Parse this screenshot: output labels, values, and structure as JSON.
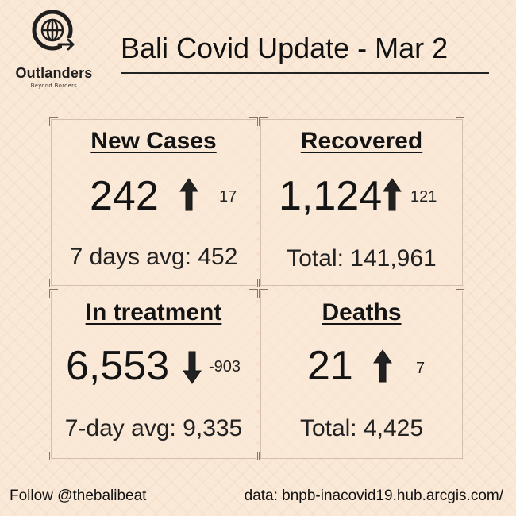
{
  "logo": {
    "name": "Outlanders",
    "tagline": "Beyond Borders"
  },
  "title": "Bali Covid Update - Mar 2",
  "cards": [
    {
      "title": "New Cases",
      "value": "242",
      "arrow": "up",
      "delta": "17",
      "sub": "7 days avg: 452"
    },
    {
      "title": "Recovered",
      "value": "1,124",
      "arrow": "up",
      "delta": "121",
      "sub": "Total: 141,961"
    },
    {
      "title": "In treatment",
      "value": "6,553",
      "arrow": "down",
      "delta": "-903",
      "sub": "7-day avg: 9,335"
    },
    {
      "title": "Deaths",
      "value": "21",
      "arrow": "up",
      "delta": "7",
      "sub": "Total: 4,425"
    }
  ],
  "footer": {
    "follow": "Follow @thebalibeat",
    "source": "data: bnpb-inacovid19.hub.arcgis.com/"
  }
}
